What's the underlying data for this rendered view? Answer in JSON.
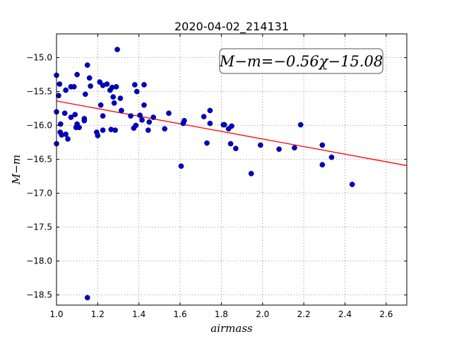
{
  "chart_data": {
    "type": "scatter",
    "title": "2020-04-02_214131",
    "xlabel": "airmass",
    "ylabel": "M−m",
    "xlim": [
      1.0,
      2.7
    ],
    "ylim": [
      -18.65,
      -14.65
    ],
    "xticks": [
      1.0,
      1.2,
      1.4,
      1.6,
      1.8,
      2.0,
      2.2,
      2.4,
      2.6
    ],
    "xtick_labels": [
      "1.0",
      "1.2",
      "1.4",
      "1.6",
      "1.8",
      "2.0",
      "2.2",
      "2.4",
      "2.6"
    ],
    "yticks": [
      -15.0,
      -15.5,
      -16.0,
      -16.5,
      -17.0,
      -17.5,
      -18.0,
      -18.5
    ],
    "ytick_labels": [
      "−15.0",
      "−15.5",
      "−16.0",
      "−16.5",
      "−17.0",
      "−17.5",
      "−18.0",
      "−18.5"
    ],
    "grid": true,
    "annotation": "M−m=−0.56χ−15.08",
    "fit_line": {
      "slope": -0.56,
      "intercept": -15.08,
      "color": "#ff0000"
    },
    "point_color": "#0000cc",
    "points": [
      [
        1.0,
        -15.26
      ],
      [
        1.0,
        -15.8
      ],
      [
        1.0,
        -16.27
      ],
      [
        1.01,
        -15.56
      ],
      [
        1.015,
        -15.39
      ],
      [
        1.018,
        -16.1
      ],
      [
        1.02,
        -15.98
      ],
      [
        1.025,
        -16.14
      ],
      [
        1.04,
        -15.82
      ],
      [
        1.045,
        -15.48
      ],
      [
        1.045,
        -16.13
      ],
      [
        1.055,
        -16.2
      ],
      [
        1.07,
        -15.88
      ],
      [
        1.07,
        -15.43
      ],
      [
        1.085,
        -15.43
      ],
      [
        1.09,
        -15.84
      ],
      [
        1.095,
        -16.03
      ],
      [
        1.1,
        -15.25
      ],
      [
        1.1,
        -15.98
      ],
      [
        1.11,
        -16.03
      ],
      [
        1.135,
        -15.9
      ],
      [
        1.135,
        -15.93
      ],
      [
        1.14,
        -15.54
      ],
      [
        1.15,
        -15.11
      ],
      [
        1.15,
        -18.54
      ],
      [
        1.16,
        -15.3
      ],
      [
        1.165,
        -15.42
      ],
      [
        1.195,
        -16.1
      ],
      [
        1.2,
        -16.15
      ],
      [
        1.21,
        -15.36
      ],
      [
        1.215,
        -15.7
      ],
      [
        1.225,
        -15.86
      ],
      [
        1.225,
        -15.41
      ],
      [
        1.225,
        -16.07
      ],
      [
        1.245,
        -15.39
      ],
      [
        1.26,
        -15.48
      ],
      [
        1.265,
        -16.06
      ],
      [
        1.27,
        -15.44
      ],
      [
        1.275,
        -15.58
      ],
      [
        1.28,
        -15.67
      ],
      [
        1.285,
        -16.07
      ],
      [
        1.29,
        -15.43
      ],
      [
        1.295,
        -14.88
      ],
      [
        1.31,
        -15.6
      ],
      [
        1.315,
        -15.78
      ],
      [
        1.36,
        -15.86
      ],
      [
        1.375,
        -16.04
      ],
      [
        1.38,
        -15.4
      ],
      [
        1.385,
        -16.0
      ],
      [
        1.39,
        -15.5
      ],
      [
        1.405,
        -15.85
      ],
      [
        1.415,
        -15.92
      ],
      [
        1.425,
        -15.7
      ],
      [
        1.425,
        -15.4
      ],
      [
        1.445,
        -16.07
      ],
      [
        1.45,
        -15.95
      ],
      [
        1.47,
        -15.88
      ],
      [
        1.525,
        -16.05
      ],
      [
        1.545,
        -15.82
      ],
      [
        1.605,
        -16.6
      ],
      [
        1.615,
        -15.97
      ],
      [
        1.62,
        -15.93
      ],
      [
        1.715,
        -15.87
      ],
      [
        1.73,
        -16.26
      ],
      [
        1.745,
        -15.97
      ],
      [
        1.745,
        -15.78
      ],
      [
        1.81,
        -15.99
      ],
      [
        1.815,
        -15.99
      ],
      [
        1.835,
        -16.05
      ],
      [
        1.845,
        -16.27
      ],
      [
        1.85,
        -16.01
      ],
      [
        1.87,
        -16.34
      ],
      [
        1.945,
        -16.71
      ],
      [
        1.99,
        -16.29
      ],
      [
        2.08,
        -16.35
      ],
      [
        2.155,
        -16.33
      ],
      [
        2.185,
        -15.99
      ],
      [
        2.29,
        -16.29
      ],
      [
        2.29,
        -16.58
      ],
      [
        2.335,
        -16.47
      ],
      [
        2.435,
        -16.87
      ]
    ]
  }
}
